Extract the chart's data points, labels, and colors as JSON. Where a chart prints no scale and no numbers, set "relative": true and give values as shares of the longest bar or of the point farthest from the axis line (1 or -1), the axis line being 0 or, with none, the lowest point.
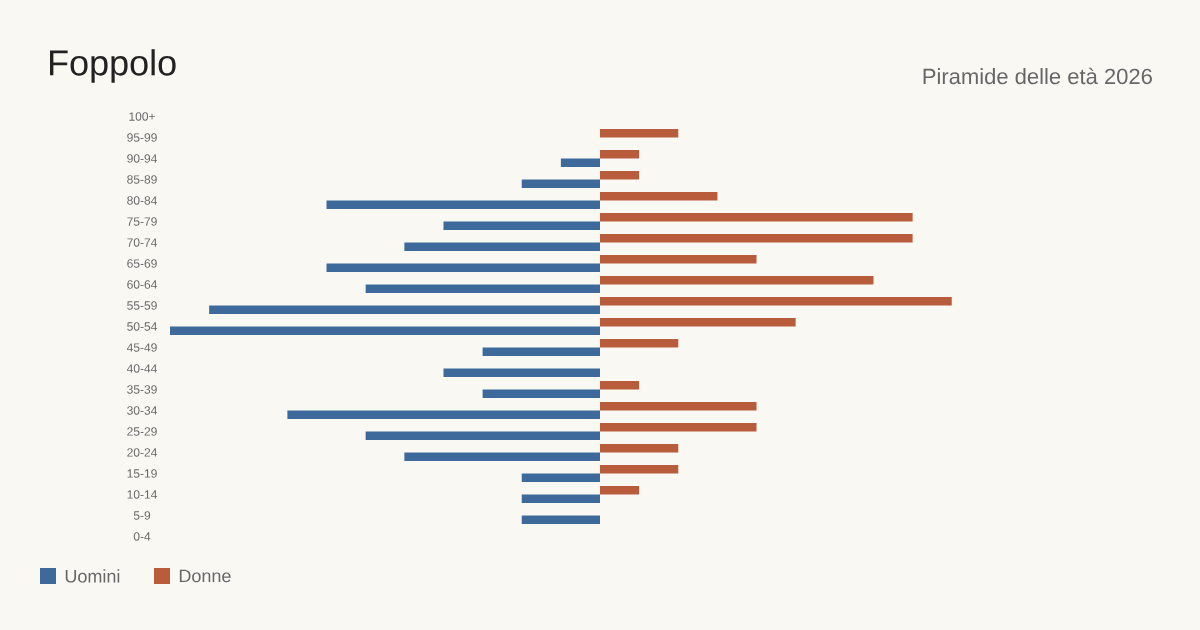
{
  "chart_data": {
    "type": "bar",
    "orientation": "horizontal",
    "relative": true,
    "title": "Foppolo",
    "subtitle": "Piramide delle età 2026",
    "categories": [
      "100+",
      "95-99",
      "90-94",
      "85-89",
      "80-84",
      "75-79",
      "70-74",
      "65-69",
      "60-64",
      "55-59",
      "50-54",
      "45-49",
      "40-44",
      "35-39",
      "30-34",
      "25-29",
      "20-24",
      "15-19",
      "10-14",
      "5-9",
      "0-4"
    ],
    "series": [
      {
        "name": "Uomini",
        "color": "#3d6a9a",
        "values": [
          0,
          0,
          -0.091,
          -0.182,
          -0.636,
          -0.364,
          -0.455,
          -0.636,
          -0.545,
          -0.909,
          -1,
          -0.273,
          -0.364,
          -0.273,
          -0.727,
          -0.545,
          -0.455,
          -0.182,
          -0.182,
          -0.182,
          0
        ]
      },
      {
        "name": "Donne",
        "color": "#b85c3c",
        "values": [
          0,
          0.182,
          0.091,
          0.091,
          0.273,
          0.727,
          0.727,
          0.364,
          0.636,
          0.818,
          0.455,
          0.182,
          0,
          0.091,
          0.364,
          0.364,
          0.182,
          0.182,
          0.091,
          0,
          0
        ]
      }
    ],
    "legend": "bottom left"
  }
}
